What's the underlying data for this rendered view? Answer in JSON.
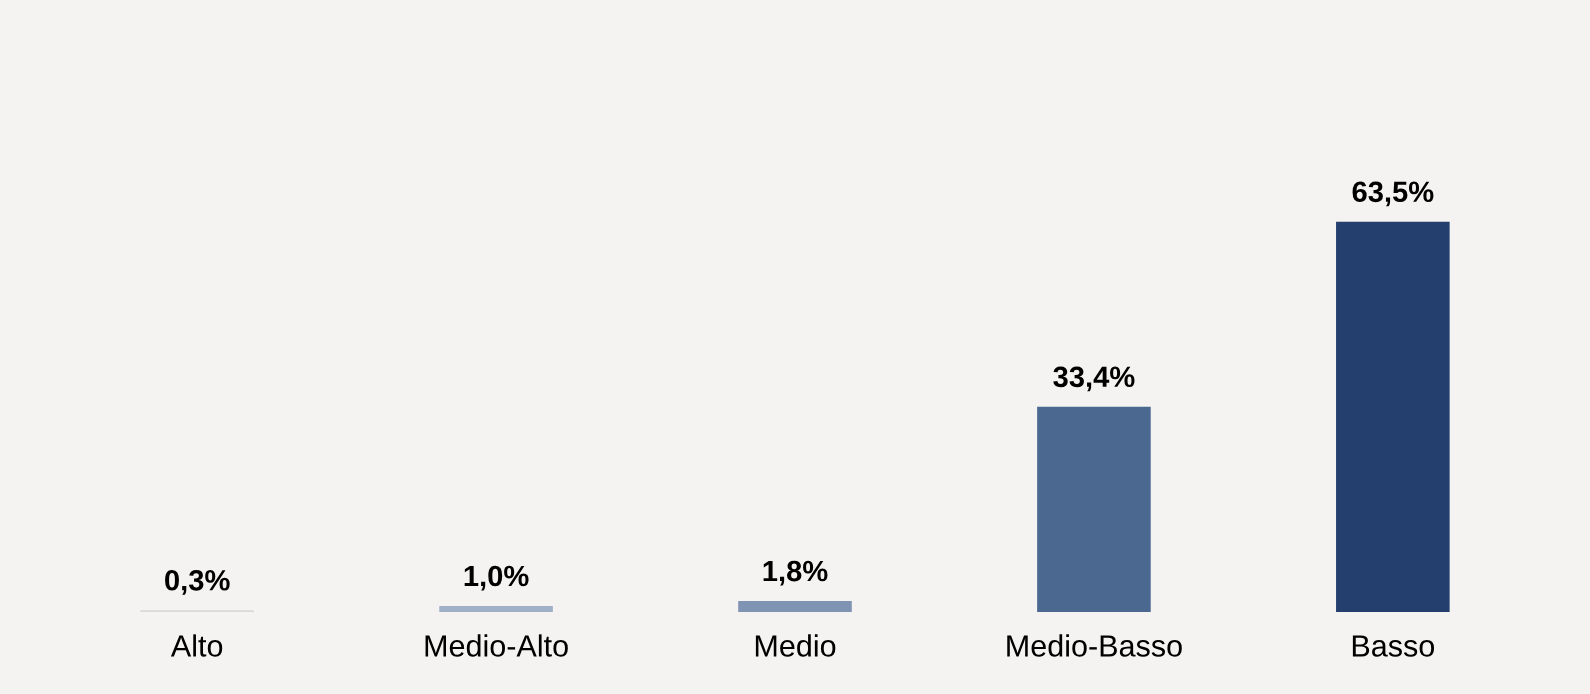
{
  "chart_data": {
    "type": "bar",
    "categories": [
      "Alto",
      "Medio-Alto",
      "Medio",
      "Medio-Basso",
      "Basso"
    ],
    "values": [
      0.3,
      1.0,
      1.8,
      33.4,
      63.5
    ],
    "colors": [
      "#d9d9d9",
      "#9fb0c8",
      "#7f93b3",
      "#4a6890",
      "#243f6e"
    ],
    "value_labels": [
      "0,3%",
      "1,0%",
      "1,8%",
      "33,4%",
      "63,5%"
    ],
    "grid": false,
    "legend": false
  }
}
